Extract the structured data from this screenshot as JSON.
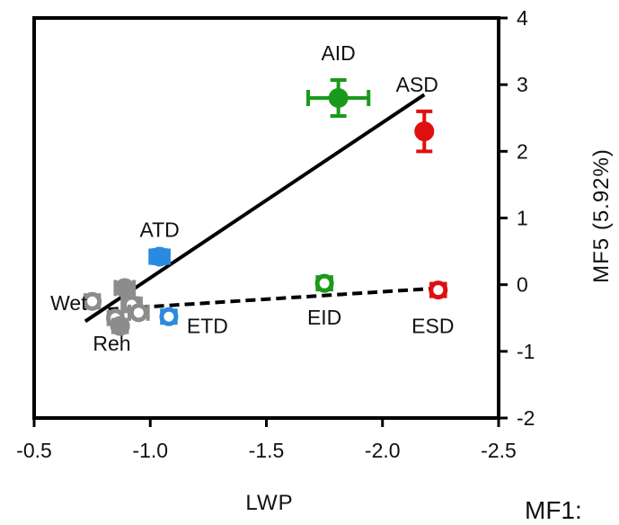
{
  "footer_text": "MF1:",
  "chart_data": {
    "type": "scatter",
    "title": "",
    "xlabel": "LWP",
    "ylabel": "MF5 (5.92%)",
    "xlim": [
      -0.5,
      -2.5
    ],
    "ylim": [
      -2,
      4
    ],
    "x_ticks": [
      -0.5,
      -1.0,
      -1.5,
      -2.0,
      -2.5
    ],
    "x_tick_labels": [
      "-0.5",
      "-1.0",
      "-1.5",
      "-2.0",
      "-2.5"
    ],
    "y_ticks": [
      -2,
      -1,
      0,
      1,
      2,
      3,
      4
    ],
    "y_tick_labels": [
      "-2",
      "-1",
      "0",
      "1",
      "2",
      "3",
      "4"
    ],
    "grid": false,
    "y_axis_position": "right",
    "points": [
      {
        "label": "AID",
        "x": -1.81,
        "y": 2.8,
        "xerr": 0.13,
        "yerr": 0.27,
        "color": "#1a9a1a",
        "marker": "filled-circle"
      },
      {
        "label": "ASD",
        "x": -2.18,
        "y": 2.3,
        "xerr": 0.0,
        "yerr": 0.3,
        "color": "#e01010",
        "marker": "filled-circle"
      },
      {
        "label": "ATD",
        "x": -1.04,
        "y": 0.42,
        "xerr": 0.04,
        "yerr": 0.1,
        "color": "#2a8ae0",
        "marker": "filled-circle"
      },
      {
        "label": "EID",
        "x": -1.75,
        "y": 0.02,
        "xerr": 0.03,
        "yerr": 0.06,
        "color": "#1a9a1a",
        "marker": "open-circle"
      },
      {
        "label": "ESD",
        "x": -2.24,
        "y": -0.08,
        "xerr": 0.03,
        "yerr": 0.06,
        "color": "#e01010",
        "marker": "open-circle"
      },
      {
        "label": "ETD",
        "x": -1.08,
        "y": -0.48,
        "xerr": 0.03,
        "yerr": 0.07,
        "color": "#2a8ae0",
        "marker": "open-circle"
      },
      {
        "label": "Wet",
        "x": -0.75,
        "y": -0.25,
        "xerr": 0.03,
        "yerr": 0.06,
        "color": "#8c8c8c",
        "marker": "open-circle"
      },
      {
        "label": "Reh",
        "x": -0.85,
        "y": -0.5,
        "xerr": 0.03,
        "yerr": 0.06,
        "color": "#8c8c8c",
        "marker": "open-circle"
      },
      {
        "label": "",
        "x": -0.89,
        "y": -0.05,
        "xerr": 0.04,
        "yerr": 0.08,
        "color": "#8c8c8c",
        "marker": "filled-circle"
      },
      {
        "label": "",
        "x": -0.92,
        "y": -0.3,
        "xerr": 0.04,
        "yerr": 0.1,
        "color": "#8c8c8c",
        "marker": "open-circle"
      },
      {
        "label": "",
        "x": -0.95,
        "y": -0.42,
        "xerr": 0.04,
        "yerr": 0.06,
        "color": "#8c8c8c",
        "marker": "open-circle"
      },
      {
        "label": "",
        "x": -0.87,
        "y": -0.62,
        "xerr": 0.03,
        "yerr": 0.08,
        "color": "#8c8c8c",
        "marker": "filled-circle"
      }
    ],
    "trend_lines": [
      {
        "style": "solid",
        "x": [
          -0.72,
          -2.18
        ],
        "y": [
          -0.55,
          2.85
        ]
      },
      {
        "style": "dashed",
        "x": [
          -0.82,
          -2.25
        ],
        "y": [
          -0.37,
          -0.05
        ]
      }
    ]
  }
}
